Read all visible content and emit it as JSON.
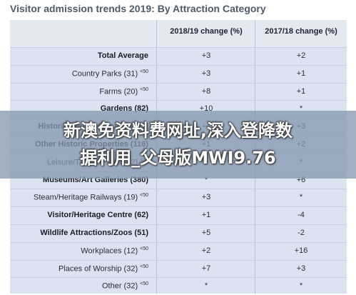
{
  "title": "Visitor admission trends 2019: By Attraction Category",
  "columns": [
    "2018/19 change (%)",
    "2017/18 change (%)"
  ],
  "rows": [
    {
      "label": "Total Average",
      "bold": true,
      "sup": "",
      "v1": "+3",
      "v2": "+2"
    },
    {
      "label": "Country Parks (31)",
      "bold": false,
      "sup": "<50",
      "v1": "+3",
      "v2": "+1"
    },
    {
      "label": "Farms (20)",
      "bold": false,
      "sup": "<50",
      "v1": "+8",
      "v2": "+1"
    },
    {
      "label": "Gardens (82)",
      "bold": true,
      "sup": "",
      "v1": "+10",
      "v2": "*"
    },
    {
      "label": "Historic Houses/Castles (155)",
      "bold": true,
      "sup": "",
      "v1": "+1",
      "v2": "+3"
    },
    {
      "label": "Other Historic Properties (116)",
      "bold": true,
      "sup": "",
      "v1": "+1",
      "v2": "+2"
    },
    {
      "label": "Leisure/Theme Parks (22)",
      "bold": false,
      "sup": "<50",
      "v1": "*",
      "v2": "*"
    },
    {
      "label": "Museums/Art Galleries (380)",
      "bold": true,
      "sup": "",
      "v1": "*",
      "v2": "+6"
    },
    {
      "label": "Steam/Heritage Railways (19)",
      "bold": false,
      "sup": "<50",
      "v1": "+3",
      "v2": "*"
    },
    {
      "label": "Visitor/Heritage Centre (62)",
      "bold": true,
      "sup": "",
      "v1": "+1",
      "v2": "-4"
    },
    {
      "label": "Wildlife Attractions/Zoos (51)",
      "bold": true,
      "sup": "",
      "v1": "+5",
      "v2": "-2"
    },
    {
      "label": "Workplaces (12)",
      "bold": false,
      "sup": "<50",
      "v1": "+2",
      "v2": "+16"
    },
    {
      "label": "Places of Worship (32)",
      "bold": false,
      "sup": "<50",
      "v1": "+7",
      "v2": "+3"
    },
    {
      "label": "Other (32)",
      "bold": false,
      "sup": "<50",
      "v1": "*",
      "v2": "*"
    }
  ],
  "overlay": {
    "line1": "新澳免资料费网址,深入登降数",
    "line2": "据利用_父母版MWI9.76"
  }
}
